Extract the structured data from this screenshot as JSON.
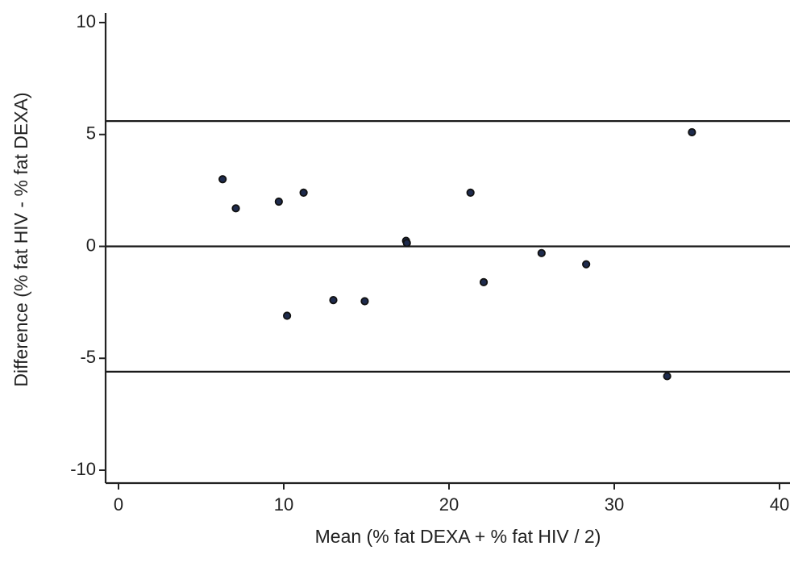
{
  "chart_data": {
    "type": "scatter",
    "title": "",
    "xlabel": "Mean  (% fat DEXA + % fat HIV / 2)",
    "ylabel": "Difference (% fat HIV - % fat DEXA)",
    "xlim": [
      0,
      40
    ],
    "ylim": [
      -10,
      10
    ],
    "x_ticks": [
      0,
      10,
      20,
      30,
      40
    ],
    "y_ticks": [
      10,
      5,
      0,
      -5,
      -10
    ],
    "x_tick_labels": [
      "0",
      "10",
      "20",
      "30",
      "40"
    ],
    "y_tick_labels": [
      "10",
      "5",
      "0",
      "-5",
      "-10"
    ],
    "grid": false,
    "legend": "none",
    "reference_lines": [
      5.6,
      0,
      -5.6
    ],
    "series": [
      {
        "points": [
          {
            "x": 6.3,
            "y": 3.0
          },
          {
            "x": 7.1,
            "y": 1.7
          },
          {
            "x": 9.7,
            "y": 2.0
          },
          {
            "x": 11.2,
            "y": 2.4
          },
          {
            "x": 10.2,
            "y": -3.1
          },
          {
            "x": 13.0,
            "y": -2.4
          },
          {
            "x": 14.9,
            "y": -2.45
          },
          {
            "x": 17.4,
            "y": 0.25
          },
          {
            "x": 17.45,
            "y": 0.15
          },
          {
            "x": 21.3,
            "y": 2.4
          },
          {
            "x": 22.1,
            "y": -1.6
          },
          {
            "x": 25.6,
            "y": -0.3
          },
          {
            "x": 28.3,
            "y": -0.8
          },
          {
            "x": 33.2,
            "y": -5.8
          },
          {
            "x": 34.7,
            "y": 5.1
          }
        ]
      }
    ],
    "colors": {
      "axis": "#222222",
      "reference_line": "#1a1a1a",
      "marker_fill": "#1e2b4d",
      "marker_stroke": "#111111"
    }
  }
}
